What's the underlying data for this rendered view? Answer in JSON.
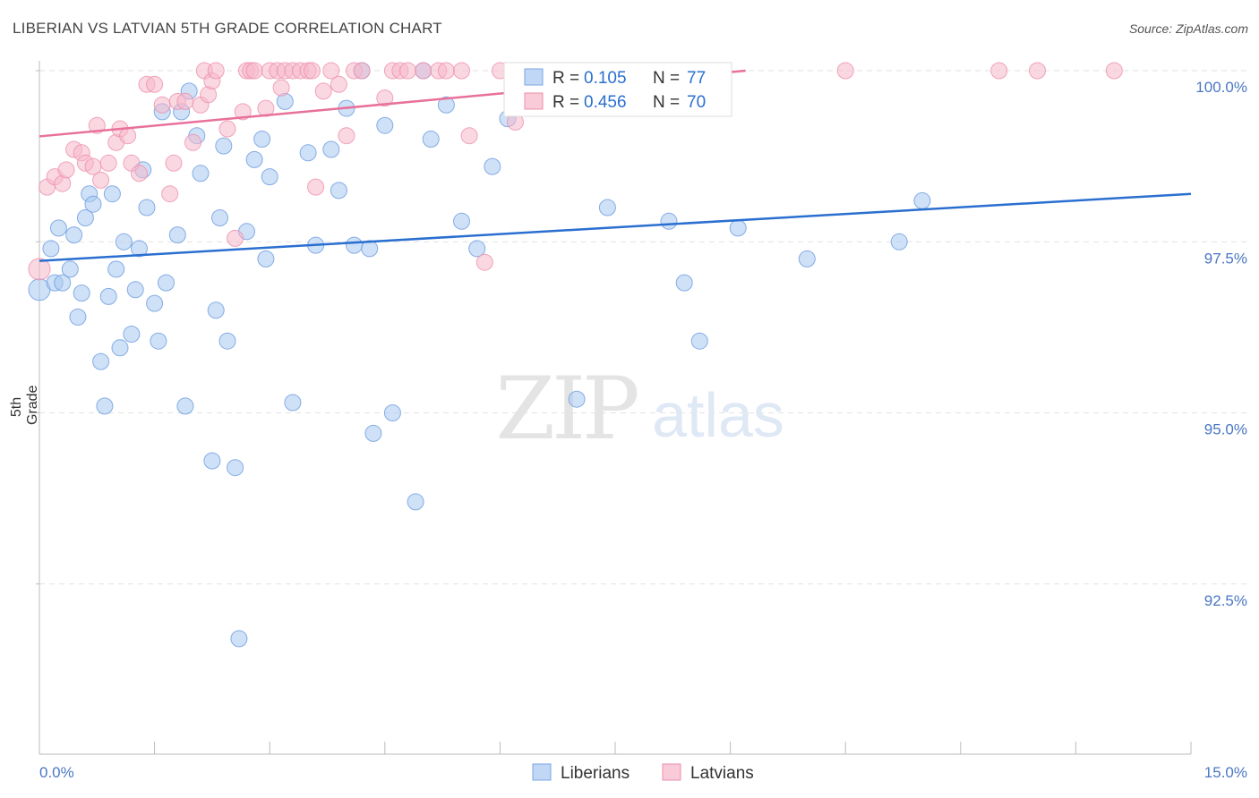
{
  "header": {
    "title": "LIBERIAN VS LATVIAN 5TH GRADE CORRELATION CHART",
    "source": "Source: ZipAtlas.com"
  },
  "watermark": {
    "zip": "ZIP",
    "atlas": "atlas"
  },
  "legend": {
    "rows": [
      {
        "r_label": "R = ",
        "r_value": "0.105",
        "n_label": "N = ",
        "n_value": "77",
        "color": "#a8c8f0"
      },
      {
        "r_label": "R = ",
        "r_value": "0.456",
        "n_label": "N = ",
        "n_value": "70",
        "color": "#f6b8cb"
      }
    ]
  },
  "bottom_legend": [
    {
      "label": "Liberians",
      "color": "#a8c8f0"
    },
    {
      "label": "Latvians",
      "color": "#f6b8cb"
    }
  ],
  "chart_data": {
    "type": "scatter",
    "title": "LIBERIAN VS LATVIAN 5TH GRADE CORRELATION CHART",
    "xlabel": "",
    "ylabel": "5th Grade",
    "xlim": [
      0,
      15
    ],
    "ylim": [
      90.5,
      100.2
    ],
    "x_tick_labels": [
      "0.0%",
      "15.0%"
    ],
    "y_ticks": [
      92.5,
      95.0,
      97.5,
      100.0
    ],
    "y_tick_labels": [
      "92.5%",
      "95.0%",
      "97.5%",
      "100.0%"
    ],
    "grid": true,
    "legend_position": "top-center",
    "series": [
      {
        "name": "Liberians",
        "color": "#a8c8f0",
        "edge": "#6b9be0",
        "trend": {
          "x0": 0,
          "y0": 97.22,
          "x1": 15,
          "y1": 98.2,
          "color": "#2a6fd0"
        },
        "points": [
          [
            0.0,
            96.8
          ],
          [
            0.15,
            97.4
          ],
          [
            0.2,
            96.9
          ],
          [
            0.25,
            97.7
          ],
          [
            0.3,
            96.9
          ],
          [
            0.4,
            97.1
          ],
          [
            0.45,
            97.6
          ],
          [
            0.5,
            96.4
          ],
          [
            0.55,
            96.75
          ],
          [
            0.6,
            97.85
          ],
          [
            0.65,
            98.2
          ],
          [
            0.7,
            98.05
          ],
          [
            0.8,
            95.75
          ],
          [
            0.85,
            95.1
          ],
          [
            0.9,
            96.7
          ],
          [
            0.95,
            98.2
          ],
          [
            1.0,
            97.1
          ],
          [
            1.05,
            95.95
          ],
          [
            1.1,
            97.5
          ],
          [
            1.2,
            96.15
          ],
          [
            1.25,
            96.8
          ],
          [
            1.3,
            97.4
          ],
          [
            1.35,
            98.55
          ],
          [
            1.4,
            98.0
          ],
          [
            1.5,
            96.6
          ],
          [
            1.55,
            96.05
          ],
          [
            1.6,
            99.4
          ],
          [
            1.65,
            96.9
          ],
          [
            1.8,
            97.6
          ],
          [
            1.85,
            99.4
          ],
          [
            1.9,
            95.1
          ],
          [
            1.95,
            99.7
          ],
          [
            2.05,
            99.05
          ],
          [
            2.1,
            98.5
          ],
          [
            2.25,
            94.3
          ],
          [
            2.3,
            96.5
          ],
          [
            2.35,
            97.85
          ],
          [
            2.4,
            98.9
          ],
          [
            2.45,
            96.05
          ],
          [
            2.55,
            94.2
          ],
          [
            2.6,
            91.7
          ],
          [
            2.7,
            97.65
          ],
          [
            2.8,
            98.7
          ],
          [
            2.9,
            99.0
          ],
          [
            2.95,
            97.25
          ],
          [
            3.0,
            98.45
          ],
          [
            3.2,
            99.55
          ],
          [
            3.3,
            95.15
          ],
          [
            3.5,
            98.8
          ],
          [
            3.6,
            97.45
          ],
          [
            3.8,
            98.85
          ],
          [
            3.9,
            98.25
          ],
          [
            4.0,
            99.45
          ],
          [
            4.1,
            97.45
          ],
          [
            4.2,
            100.0
          ],
          [
            4.3,
            97.4
          ],
          [
            4.35,
            94.7
          ],
          [
            4.5,
            99.2
          ],
          [
            4.6,
            95.0
          ],
          [
            4.9,
            93.7
          ],
          [
            5.0,
            100.0
          ],
          [
            5.1,
            99.0
          ],
          [
            5.3,
            99.5
          ],
          [
            5.5,
            97.8
          ],
          [
            5.7,
            97.4
          ],
          [
            5.9,
            98.6
          ],
          [
            6.1,
            99.3
          ],
          [
            6.3,
            99.6
          ],
          [
            7.0,
            95.2
          ],
          [
            7.4,
            98.0
          ],
          [
            8.2,
            97.8
          ],
          [
            8.4,
            96.9
          ],
          [
            8.6,
            96.05
          ],
          [
            9.1,
            97.7
          ],
          [
            10.0,
            97.25
          ],
          [
            11.2,
            97.5
          ],
          [
            11.5,
            98.1
          ]
        ]
      },
      {
        "name": "Latvians",
        "color": "#f6b8cb",
        "edge": "#ee8fab",
        "trend": {
          "x0": 0,
          "y0": 99.04,
          "x1": 9.2,
          "y1": 100.0,
          "color": "#e8709a"
        },
        "points": [
          [
            0.0,
            97.1
          ],
          [
            0.1,
            98.3
          ],
          [
            0.2,
            98.45
          ],
          [
            0.3,
            98.35
          ],
          [
            0.35,
            98.55
          ],
          [
            0.45,
            98.85
          ],
          [
            0.55,
            98.8
          ],
          [
            0.6,
            98.65
          ],
          [
            0.7,
            98.6
          ],
          [
            0.75,
            99.2
          ],
          [
            0.8,
            98.4
          ],
          [
            0.9,
            98.65
          ],
          [
            1.0,
            98.95
          ],
          [
            1.05,
            99.15
          ],
          [
            1.15,
            99.05
          ],
          [
            1.2,
            98.65
          ],
          [
            1.3,
            98.5
          ],
          [
            1.4,
            99.8
          ],
          [
            1.5,
            99.8
          ],
          [
            1.6,
            99.5
          ],
          [
            1.7,
            98.2
          ],
          [
            1.75,
            98.65
          ],
          [
            1.8,
            99.55
          ],
          [
            1.9,
            99.55
          ],
          [
            2.0,
            98.95
          ],
          [
            2.1,
            99.5
          ],
          [
            2.15,
            100.0
          ],
          [
            2.2,
            99.65
          ],
          [
            2.25,
            99.85
          ],
          [
            2.3,
            100.0
          ],
          [
            2.45,
            99.15
          ],
          [
            2.55,
            97.55
          ],
          [
            2.65,
            99.4
          ],
          [
            2.7,
            100.0
          ],
          [
            2.75,
            100.0
          ],
          [
            2.8,
            100.0
          ],
          [
            2.95,
            99.45
          ],
          [
            3.0,
            100.0
          ],
          [
            3.1,
            100.0
          ],
          [
            3.15,
            99.75
          ],
          [
            3.2,
            100.0
          ],
          [
            3.3,
            100.0
          ],
          [
            3.4,
            100.0
          ],
          [
            3.5,
            100.0
          ],
          [
            3.55,
            100.0
          ],
          [
            3.6,
            98.3
          ],
          [
            3.7,
            99.7
          ],
          [
            3.8,
            100.0
          ],
          [
            3.9,
            99.8
          ],
          [
            4.0,
            99.05
          ],
          [
            4.1,
            100.0
          ],
          [
            4.2,
            100.0
          ],
          [
            4.5,
            99.6
          ],
          [
            4.6,
            100.0
          ],
          [
            4.7,
            100.0
          ],
          [
            4.8,
            100.0
          ],
          [
            5.0,
            100.0
          ],
          [
            5.2,
            100.0
          ],
          [
            5.3,
            100.0
          ],
          [
            5.5,
            100.0
          ],
          [
            5.6,
            99.05
          ],
          [
            5.8,
            97.2
          ],
          [
            6.0,
            100.0
          ],
          [
            6.2,
            99.25
          ],
          [
            6.5,
            100.0
          ],
          [
            7.0,
            100.0
          ],
          [
            10.5,
            100.0
          ],
          [
            12.5,
            100.0
          ],
          [
            13.0,
            100.0
          ],
          [
            14.0,
            100.0
          ]
        ]
      }
    ]
  }
}
